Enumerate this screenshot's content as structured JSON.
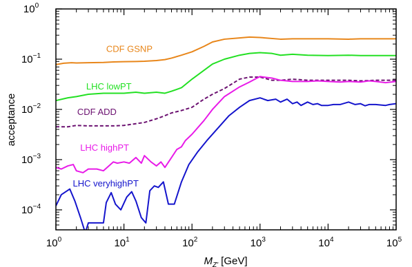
{
  "chart_data": {
    "type": "line",
    "xlabel_main": "M",
    "xlabel_sub": "Z'",
    "xlabel_unit": " [GeV]",
    "ylabel": "acceptance",
    "xscale": "log",
    "yscale": "log",
    "xlim": [
      1,
      100000
    ],
    "ylim": [
      4e-05,
      1
    ],
    "x_ticks": [
      {
        "value": 1,
        "base": "10",
        "exp": "0"
      },
      {
        "value": 10,
        "base": "10",
        "exp": "1"
      },
      {
        "value": 100,
        "base": "10",
        "exp": "2"
      },
      {
        "value": 1000,
        "base": "10",
        "exp": "3"
      },
      {
        "value": 10000,
        "base": "10",
        "exp": "4"
      },
      {
        "value": 100000,
        "base": "10",
        "exp": "5"
      }
    ],
    "y_ticks": [
      {
        "value": 0.0001,
        "base": "10",
        "exp": "−4"
      },
      {
        "value": 0.001,
        "base": "10",
        "exp": "−3"
      },
      {
        "value": 0.01,
        "base": "10",
        "exp": "−2"
      },
      {
        "value": 0.1,
        "base": "10",
        "exp": "−1"
      },
      {
        "value": 1,
        "base": "10",
        "exp": "0"
      }
    ],
    "series": [
      {
        "name": "CDF GSNP",
        "color": "#E8861A",
        "dash": false,
        "label_pos": {
          "x": 12,
          "y": 0.14
        },
        "x": [
          1,
          1.3,
          1.7,
          2,
          3,
          5,
          7,
          10,
          15,
          20,
          30,
          40,
          50,
          70,
          100,
          150,
          200,
          300,
          500,
          700,
          1000,
          2000,
          3000,
          5000,
          10000,
          20000,
          30000,
          50000,
          100000
        ],
        "y": [
          0.078,
          0.083,
          0.085,
          0.084,
          0.085,
          0.086,
          0.088,
          0.089,
          0.09,
          0.091,
          0.094,
          0.098,
          0.105,
          0.12,
          0.14,
          0.18,
          0.22,
          0.25,
          0.265,
          0.275,
          0.27,
          0.25,
          0.255,
          0.255,
          0.255,
          0.25,
          0.255,
          0.255,
          0.255
        ]
      },
      {
        "name": "LHC lowPT",
        "color": "#22E022",
        "dash": false,
        "label_pos": {
          "x": 6,
          "y": 0.025
        },
        "x": [
          1,
          1.5,
          2,
          3,
          5,
          7,
          10,
          15,
          20,
          30,
          40,
          50,
          70,
          100,
          150,
          200,
          300,
          500,
          700,
          1000,
          1500,
          2000,
          3000,
          5000,
          10000,
          20000,
          30000,
          50000,
          100000
        ],
        "y": [
          0.015,
          0.017,
          0.018,
          0.02,
          0.021,
          0.021,
          0.021,
          0.022,
          0.021,
          0.022,
          0.021,
          0.023,
          0.027,
          0.04,
          0.06,
          0.08,
          0.1,
          0.12,
          0.13,
          0.135,
          0.13,
          0.12,
          0.125,
          0.12,
          0.118,
          0.12,
          0.118,
          0.118,
          0.118
        ]
      },
      {
        "name": "CDF ADD",
        "color": "#6B1070",
        "dash": true,
        "label_pos": {
          "x": 4,
          "y": 0.0078
        },
        "x": [
          1,
          1.5,
          2,
          3,
          5,
          7,
          10,
          15,
          20,
          30,
          40,
          50,
          70,
          100,
          150,
          200,
          300,
          500,
          700,
          1000,
          1500,
          2000,
          3000,
          5000,
          10000,
          20000,
          30000,
          50000,
          100000
        ],
        "y": [
          0.0045,
          0.0045,
          0.0048,
          0.0047,
          0.0047,
          0.0047,
          0.0048,
          0.0052,
          0.0055,
          0.0065,
          0.0075,
          0.0085,
          0.0095,
          0.011,
          0.016,
          0.02,
          0.026,
          0.04,
          0.044,
          0.044,
          0.038,
          0.038,
          0.04,
          0.038,
          0.038,
          0.038,
          0.037,
          0.038,
          0.038
        ]
      },
      {
        "name": "LHC highPT",
        "color": "#E81AE8",
        "dash": false,
        "label_pos": {
          "x": 5.2,
          "y": 0.0015
        },
        "x": [
          1,
          1.2,
          1.5,
          1.8,
          2,
          2.5,
          3,
          4,
          5,
          6,
          7,
          8,
          10,
          12,
          15,
          18,
          20,
          25,
          30,
          35,
          40,
          50,
          60,
          70,
          80,
          100,
          150,
          200,
          300,
          500,
          700,
          900,
          1000,
          1500,
          2000,
          3000,
          5000,
          7000,
          10000,
          15000,
          20000,
          30000,
          40000,
          50000,
          70000,
          100000
        ],
        "y": [
          0.0007,
          0.00065,
          0.00075,
          0.0008,
          0.0006,
          0.00055,
          0.00065,
          0.00065,
          0.0006,
          0.00075,
          0.0009,
          0.00085,
          0.0009,
          0.00085,
          0.0011,
          0.00085,
          0.0012,
          0.0009,
          0.00075,
          0.0009,
          0.0007,
          0.0011,
          0.0016,
          0.0018,
          0.0024,
          0.0032,
          0.006,
          0.01,
          0.018,
          0.028,
          0.035,
          0.042,
          0.045,
          0.042,
          0.038,
          0.036,
          0.036,
          0.037,
          0.036,
          0.035,
          0.036,
          0.035,
          0.037,
          0.036,
          0.034,
          0.036
        ]
      },
      {
        "name": "LHC veryhighPT",
        "color": "#1414CC",
        "dash": false,
        "label_pos": {
          "x": 5.4,
          "y": 0.00029
        },
        "x": [
          1,
          1.2,
          1.6,
          1.9,
          2.3,
          2.7,
          3,
          4,
          5,
          5.5,
          6.5,
          7.5,
          9,
          11,
          13,
          15,
          18,
          21,
          24,
          28,
          32,
          38,
          45,
          55,
          70,
          90,
          120,
          170,
          250,
          350,
          500,
          700,
          1000,
          1300,
          1700,
          2000,
          2500,
          3000,
          3500,
          4000,
          5000,
          6000,
          7000,
          8000,
          10000,
          12000,
          15000,
          20000,
          25000,
          30000,
          35000,
          40000,
          50000,
          60000,
          70000,
          80000,
          100000
        ],
        "y": [
          0.00012,
          0.0002,
          0.00026,
          0.00015,
          7e-05,
          3.5e-05,
          5.5e-05,
          5.5e-05,
          5.5e-05,
          0.00014,
          0.00022,
          0.00013,
          0.0001,
          0.00018,
          0.00023,
          0.00015,
          7e-05,
          5.5e-05,
          0.00024,
          0.0003,
          0.00028,
          0.00036,
          0.00013,
          0.00013,
          0.00036,
          0.0008,
          0.0014,
          0.0025,
          0.0045,
          0.0075,
          0.011,
          0.015,
          0.017,
          0.015,
          0.016,
          0.014,
          0.016,
          0.013,
          0.014,
          0.012,
          0.014,
          0.0125,
          0.013,
          0.012,
          0.012,
          0.0125,
          0.0125,
          0.014,
          0.0125,
          0.013,
          0.0118,
          0.0125,
          0.0125,
          0.0122,
          0.012,
          0.0125,
          0.013
        ]
      }
    ]
  }
}
